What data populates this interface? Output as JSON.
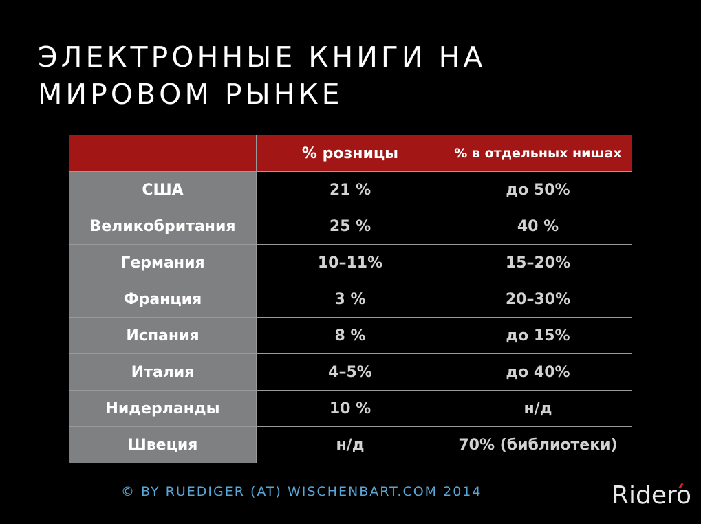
{
  "title": {
    "line1": "ЭЛЕКТРОННЫЕ КНИГИ НА",
    "line2": "МИРОВОМ РЫНКЕ"
  },
  "table": {
    "headers": [
      "",
      "% розницы",
      "% в отдельных нишах"
    ],
    "rows": [
      {
        "country": "США",
        "retail": "21 %",
        "niche": "до 50%"
      },
      {
        "country": "Великобритания",
        "retail": "25 %",
        "niche": "40 %"
      },
      {
        "country": "Германия",
        "retail": "10–11%",
        "niche": "15–20%"
      },
      {
        "country": "Франция",
        "retail": "3 %",
        "niche": "20–30%"
      },
      {
        "country": "Испания",
        "retail": "8 %",
        "niche": "до 15%"
      },
      {
        "country": "Италия",
        "retail": "4–5%",
        "niche": "до 40%"
      },
      {
        "country": "Нидерланды",
        "retail": "10 %",
        "niche": "н/д"
      },
      {
        "country": "Швеция",
        "retail": "н/д",
        "niche": "70% (библиотеки)"
      }
    ]
  },
  "footer": {
    "credit": "© BY RUEDIGER (AT) WISCHENBART.COM 2014"
  },
  "brand": {
    "name": "Ridero"
  },
  "colors": {
    "background": "#000000",
    "header_red": "#a31616",
    "country_gray": "#7f8081",
    "credit_blue": "#5aa6d6",
    "logo_accent": "#d4232a"
  }
}
